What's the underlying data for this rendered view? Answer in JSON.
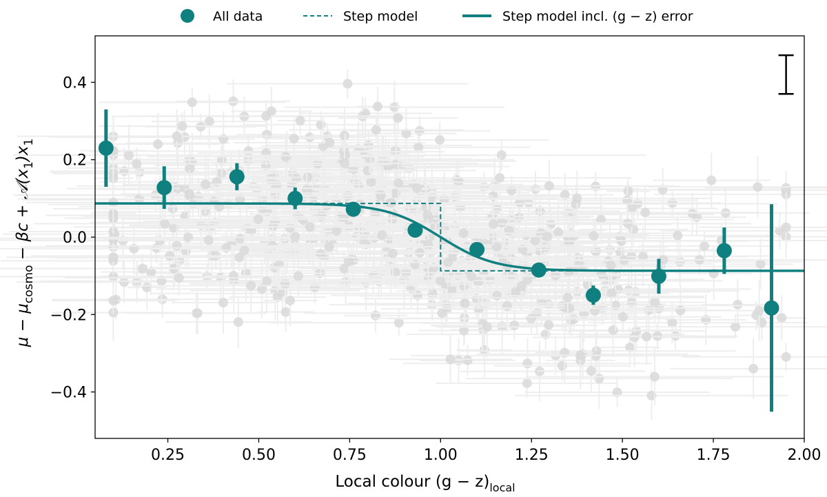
{
  "chart_data": {
    "type": "scatter",
    "title": "",
    "xlabel": "Local colour (g − z)",
    "xlabel_subscript": "local",
    "ylabel": "μ − μ",
    "ylabel_sub": "cosmo",
    "ylabel_rest": " − βc + 𝒜(x",
    "ylabel_sub2": "1",
    "ylabel_rest2": ")x",
    "ylabel_sub3": "1",
    "xlim": [
      0.05,
      2.0
    ],
    "ylim": [
      -0.52,
      0.52
    ],
    "x_ticks": [
      0.25,
      0.5,
      0.75,
      1.0,
      1.25,
      1.5,
      1.75,
      2.0
    ],
    "x_tick_labels": [
      "0.25",
      "0.50",
      "0.75",
      "1.00",
      "1.25",
      "1.50",
      "1.75",
      "2.00"
    ],
    "y_ticks": [
      -0.4,
      -0.2,
      0.0,
      0.2,
      0.4
    ],
    "y_tick_labels": [
      "−0.4",
      "−0.2",
      "0.0",
      "0.2",
      "0.4"
    ],
    "colors": {
      "teal": "#0f7f7f",
      "background_points": "#d9d9d9"
    },
    "legend": {
      "placement": "top-center-outside",
      "entries": [
        {
          "label": "All data",
          "marker": "circle"
        },
        {
          "label": "Step model",
          "marker": "dashed-line"
        },
        {
          "label": "Step model incl. (g − z) error",
          "marker": "solid-line"
        }
      ]
    },
    "binned_points": {
      "name": "All data",
      "x": [
        0.08,
        0.24,
        0.44,
        0.6,
        0.76,
        0.93,
        1.1,
        1.27,
        1.42,
        1.6,
        1.78,
        1.91
      ],
      "y": [
        0.23,
        0.128,
        0.156,
        0.1,
        0.072,
        0.018,
        -0.032,
        -0.085,
        -0.15,
        -0.101,
        -0.035,
        -0.183
      ],
      "yerr": [
        0.1,
        0.055,
        0.035,
        0.028,
        0.012,
        0.012,
        0.012,
        0.01,
        0.025,
        0.045,
        0.06,
        0.268
      ]
    },
    "step_model": {
      "name": "Step model",
      "x": [
        0.05,
        1.0,
        1.0,
        2.0
      ],
      "y": [
        0.087,
        0.087,
        -0.087,
        -0.087
      ]
    },
    "smooth_step_model": {
      "name": "Step model incl. (g − z) error",
      "high": 0.087,
      "low": -0.087,
      "center": 1.0,
      "width": 0.075
    },
    "typical_error_bar": {
      "y_center": 0.42,
      "half_height": 0.05,
      "x": 1.95
    },
    "background_scatter": {
      "n_points": 600,
      "x_range": [
        0.1,
        1.95
      ],
      "y_spread": 0.17
    }
  }
}
